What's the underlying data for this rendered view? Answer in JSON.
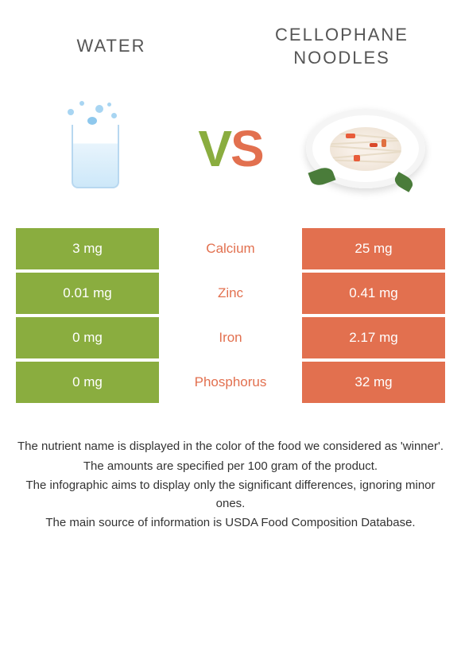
{
  "colors": {
    "green": "#8aad3f",
    "orange": "#e2704f",
    "text": "#555555"
  },
  "left": {
    "title": "Water"
  },
  "right": {
    "title": "Cellophane noodles"
  },
  "vs": {
    "v": "V",
    "s": "S"
  },
  "rows": [
    {
      "nutrient": "Calcium",
      "left": "3 mg",
      "right": "25 mg",
      "winner": "right"
    },
    {
      "nutrient": "Zinc",
      "left": "0.01 mg",
      "right": "0.41 mg",
      "winner": "right"
    },
    {
      "nutrient": "Iron",
      "left": "0 mg",
      "right": "2.17 mg",
      "winner": "right"
    },
    {
      "nutrient": "Phosphorus",
      "left": "0 mg",
      "right": "32 mg",
      "winner": "right"
    }
  ],
  "footer": {
    "l1": "The nutrient name is displayed in the color of the food we considered as 'winner'.",
    "l2": "The amounts are specified per 100 gram of the product.",
    "l3": "The infographic aims to display only the significant differences, ignoring minor ones.",
    "l4": "The main source of information is USDA Food Composition Database."
  }
}
